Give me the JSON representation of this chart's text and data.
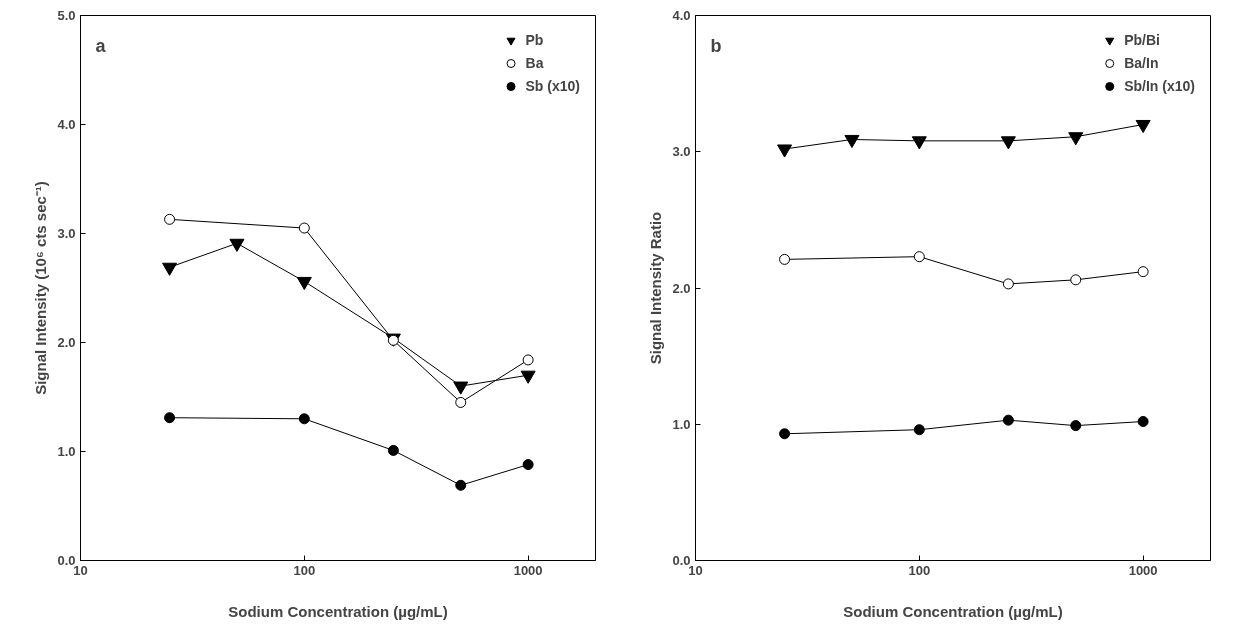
{
  "chart_data": [
    {
      "type": "line",
      "xlabel": "Sodium Concentration (µg/mL)",
      "ylabel": "Signal Intensity (10⁶ cts sec⁻¹)",
      "log": "x",
      "xlim": [
        10,
        2000
      ],
      "xticks": [
        10,
        100,
        1000
      ],
      "ylim": [
        0,
        5
      ],
      "yticks": [
        {
          "value": 0,
          "label": "0.0"
        },
        {
          "value": 1,
          "label": "1.0"
        },
        {
          "value": 2,
          "label": "2.0"
        },
        {
          "value": 3,
          "label": "3.0"
        },
        {
          "value": 4,
          "label": "4.0"
        },
        {
          "value": 5,
          "label": "5.0"
        }
      ],
      "grid": false,
      "legend": "top right",
      "annotations": [
        "a"
      ],
      "series": [
        {
          "name": "Pb",
          "color": "#000000",
          "marker": "triangle",
          "x": [
            25,
            50,
            100,
            250,
            500,
            1000
          ],
          "values": [
            2.69,
            2.91,
            2.56,
            2.04,
            1.6,
            1.7
          ]
        },
        {
          "name": "Ba",
          "color": "#ffffff",
          "marker": "circle",
          "x": [
            25,
            100,
            250,
            500,
            1000
          ],
          "values": [
            3.13,
            3.05,
            2.02,
            1.45,
            1.84
          ]
        },
        {
          "name": "Sb (x10)",
          "color": "#000000",
          "marker": "circle",
          "x": [
            25,
            100,
            250,
            500,
            1000
          ],
          "values": [
            1.31,
            1.3,
            1.01,
            0.69,
            0.88
          ]
        }
      ]
    },
    {
      "type": "line",
      "xlabel": "Sodium Concentration (µg/mL)",
      "ylabel": "Signal Intensity Ratio",
      "log": "x",
      "xlim": [
        10,
        2000
      ],
      "xticks": [
        10,
        100,
        1000
      ],
      "ylim": [
        0,
        4
      ],
      "yticks": [
        {
          "value": 0,
          "label": "0.0"
        },
        {
          "value": 1,
          "label": "1.0"
        },
        {
          "value": 2,
          "label": "2.0"
        },
        {
          "value": 3,
          "label": "3.0"
        },
        {
          "value": 4,
          "label": "4.0"
        }
      ],
      "grid": false,
      "legend": "top right",
      "annotations": [
        "b"
      ],
      "series": [
        {
          "name": "Pb/Bi",
          "color": "#000000",
          "marker": "triangle",
          "x": [
            25,
            50,
            100,
            250,
            500,
            1000
          ],
          "values": [
            3.02,
            3.09,
            3.08,
            3.08,
            3.11,
            3.2
          ]
        },
        {
          "name": "Ba/In",
          "color": "#ffffff",
          "marker": "circle",
          "x": [
            25,
            100,
            250,
            500,
            1000
          ],
          "values": [
            2.21,
            2.23,
            2.03,
            2.06,
            2.12
          ]
        },
        {
          "name": "Sb/In (x10)",
          "color": "#000000",
          "marker": "circle",
          "x": [
            25,
            100,
            250,
            500,
            1000
          ],
          "values": [
            0.93,
            0.96,
            1.03,
            0.99,
            1.02
          ]
        }
      ]
    }
  ]
}
